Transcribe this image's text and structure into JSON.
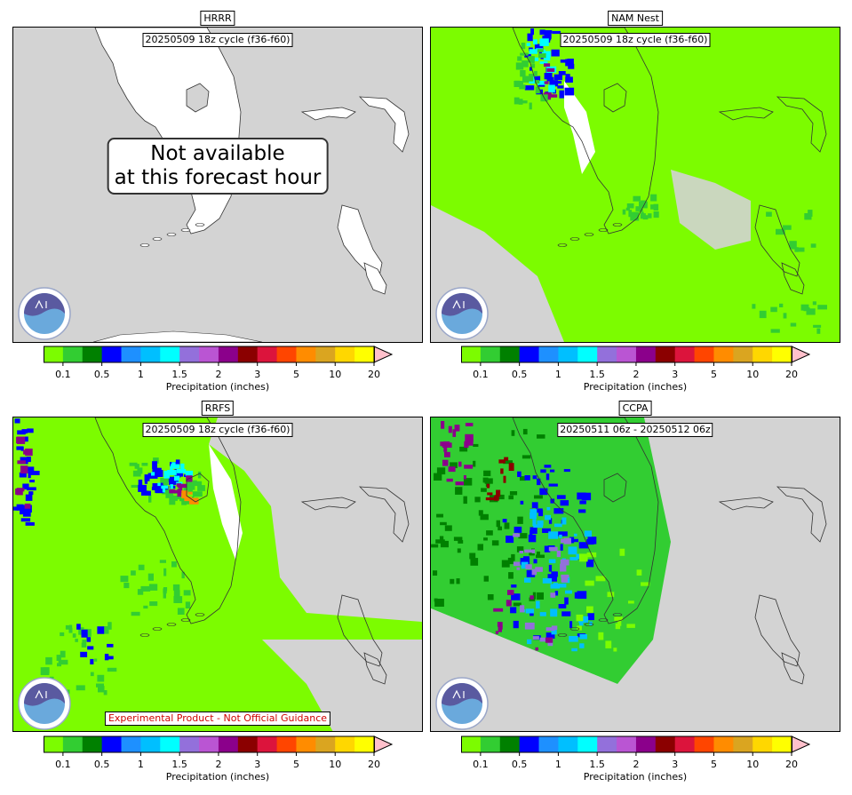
{
  "panels": [
    {
      "id": "hrrr",
      "title": "HRRR",
      "cycle": "20250509 18z cycle (f36-f60)",
      "available": false,
      "unavailable_text": [
        "Not available",
        "at this forecast hour"
      ],
      "experimental": ""
    },
    {
      "id": "namnest",
      "title": "NAM Nest",
      "cycle": "20250509 18z cycle (f36-f60)",
      "available": true,
      "experimental": ""
    },
    {
      "id": "rrfs",
      "title": "RRFS",
      "cycle": "20250509 18z cycle (f36-f60)",
      "available": true,
      "experimental": "Experimental Product - Not Official Guidance"
    },
    {
      "id": "ccpa",
      "title": "CCPA",
      "cycle": "20250511 06z - 20250512 06z",
      "available": true,
      "experimental": ""
    }
  ],
  "colorbar": {
    "label": "Precipitation (inches)",
    "ticks": [
      "0.1",
      "0.5",
      "1",
      "1.5",
      "2",
      "3",
      "5",
      "10",
      "20"
    ],
    "colors": [
      "#7cfc00",
      "#32cd32",
      "#008000",
      "#0000ff",
      "#1e90ff",
      "#00bfff",
      "#00ffff",
      "#9370db",
      "#ba55d3",
      "#8b008b",
      "#8b0000",
      "#dc143c",
      "#ff4500",
      "#ff8c00",
      "#daa520",
      "#ffd700",
      "#ffff00"
    ],
    "extend_color": "#ffc0cb"
  },
  "colors": {
    "land_nodata": "#d3d3d3",
    "water": "#ffffff"
  }
}
